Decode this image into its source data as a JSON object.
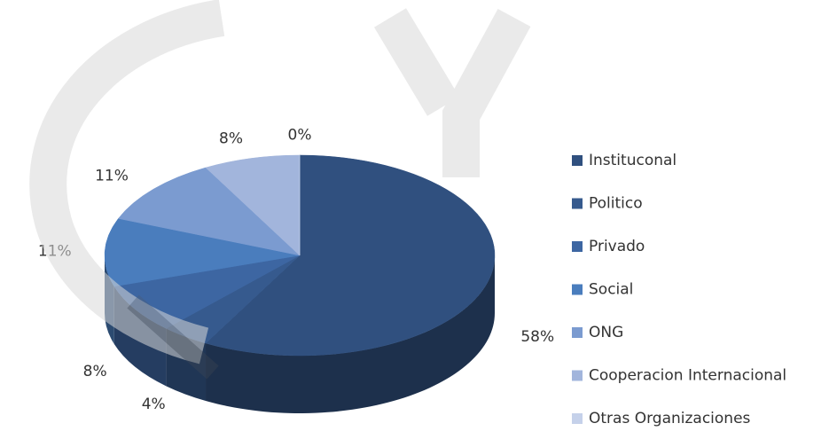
{
  "chart_data": {
    "type": "pie3d",
    "categories": [
      "Instituconal",
      "Politico",
      "Privado",
      "Social",
      "ONG",
      "Cooperacion Internacional",
      "Otras Organizaciones"
    ],
    "values": [
      58,
      4,
      8,
      11,
      11,
      8,
      0
    ],
    "value_labels": [
      "58%",
      "4%",
      "8%",
      "11%",
      "11%",
      "8%",
      "0%"
    ],
    "colors": [
      "#30507f",
      "#365a8e",
      "#3d66a2",
      "#4a7dbd",
      "#7b9bd0",
      "#a2b5dc",
      "#c5d1ea"
    ],
    "legend": "right"
  }
}
